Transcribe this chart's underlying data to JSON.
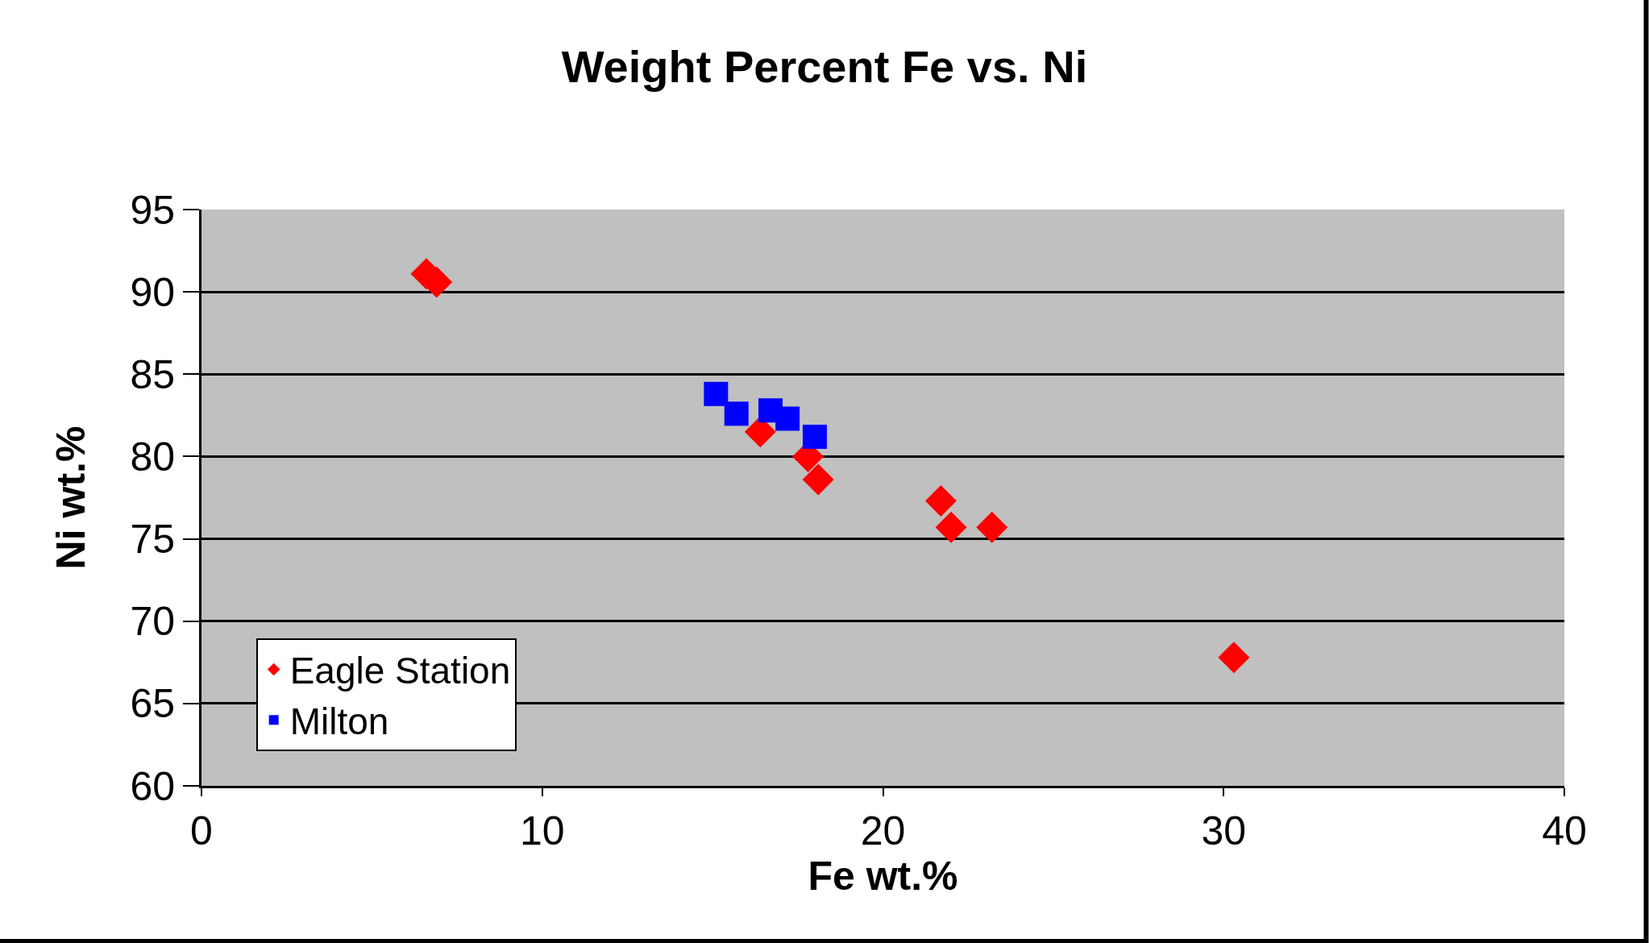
{
  "chart_data": {
    "type": "scatter",
    "title": "Weight Percent Fe vs. Ni",
    "xlabel": "Fe wt.%",
    "ylabel": "Ni wt.%",
    "xlim": [
      0,
      40
    ],
    "xticks": [
      0,
      10,
      20,
      30,
      40
    ],
    "ylim": [
      60,
      95
    ],
    "yticks": [
      60,
      65,
      70,
      75,
      80,
      85,
      90,
      95
    ],
    "grid": "y",
    "legend": "bottom left",
    "series": [
      {
        "name": "Eagle Station",
        "color": "#ff0000",
        "marker": "diamond",
        "x": [
          6.6,
          6.9,
          16.4,
          17.8,
          18.1,
          21.7,
          22.0,
          23.2,
          30.3
        ],
        "values": [
          91.1,
          90.6,
          81.5,
          80.0,
          78.6,
          77.3,
          75.7,
          75.7,
          67.8
        ]
      },
      {
        "name": "Milton",
        "color": "#0000ff",
        "marker": "square",
        "x": [
          15.1,
          15.7,
          16.7,
          17.2,
          18.0
        ],
        "values": [
          83.8,
          82.6,
          82.8,
          82.3,
          81.2
        ]
      }
    ]
  }
}
